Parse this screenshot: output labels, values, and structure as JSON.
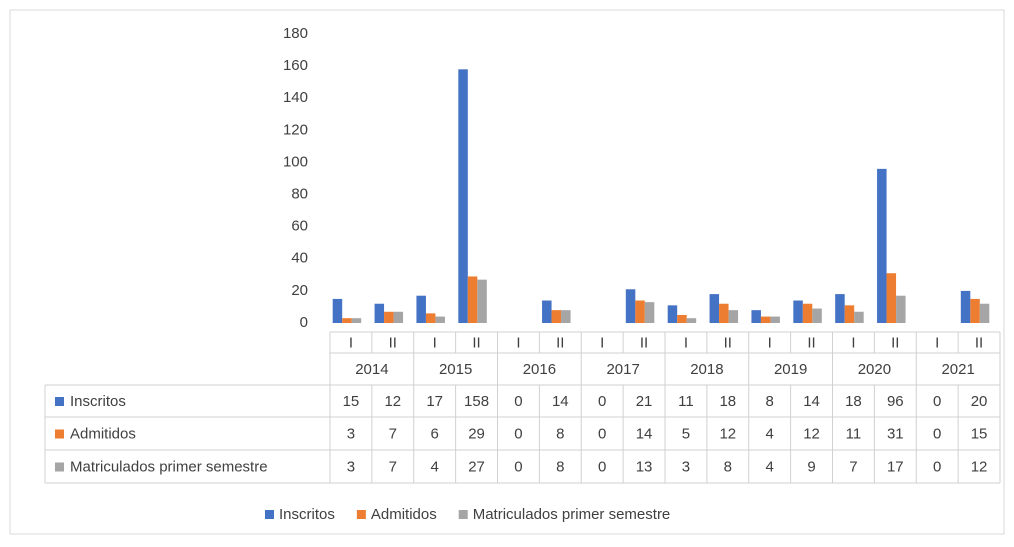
{
  "chart_data": {
    "type": "bar",
    "categories": [
      "I",
      "II",
      "I",
      "II",
      "I",
      "II",
      "I",
      "II",
      "I",
      "II",
      "I",
      "II",
      "I",
      "II",
      "I",
      "II"
    ],
    "years": [
      "2014",
      "2015",
      "2016",
      "2017",
      "2018",
      "2019",
      "2020",
      "2021"
    ],
    "series": [
      {
        "name": "Inscritos",
        "color": "#4472c4",
        "values": [
          15,
          12,
          17,
          158,
          0,
          14,
          0,
          21,
          11,
          18,
          8,
          14,
          18,
          96,
          0,
          20
        ]
      },
      {
        "name": "Admitidos",
        "color": "#ed7d31",
        "values": [
          3,
          7,
          6,
          29,
          0,
          8,
          0,
          14,
          5,
          12,
          4,
          12,
          11,
          31,
          0,
          15
        ]
      },
      {
        "name": "Matriculados primer semestre",
        "color": "#a5a5a5",
        "values": [
          3,
          7,
          4,
          27,
          0,
          8,
          0,
          13,
          3,
          8,
          4,
          9,
          7,
          17,
          0,
          12
        ]
      }
    ],
    "ylim": [
      0,
      180
    ],
    "yticks": [
      0,
      20,
      40,
      60,
      80,
      100,
      120,
      140,
      160,
      180
    ],
    "grid": false,
    "legend": "bottom",
    "data_table": true
  }
}
